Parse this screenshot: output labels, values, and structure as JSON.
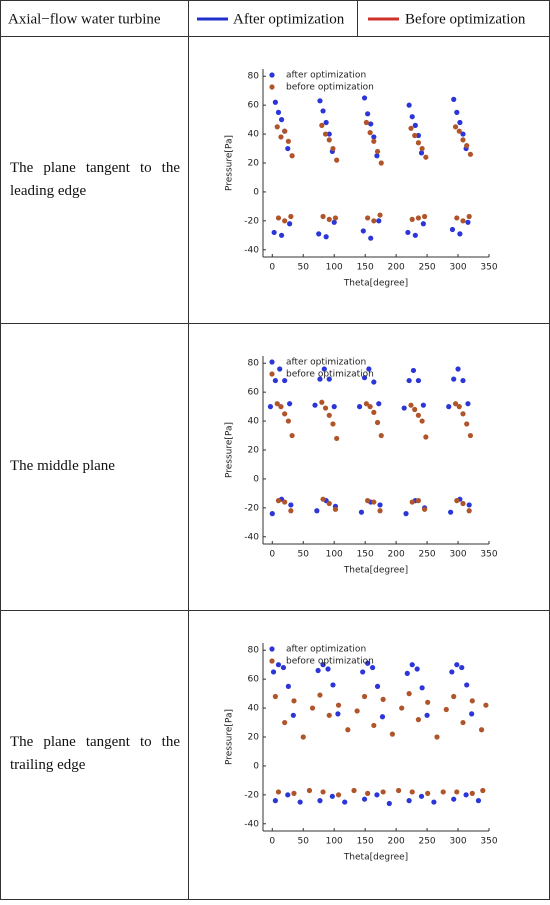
{
  "table": {
    "header": [
      "Axial−flow water turbine",
      "After optimization",
      "Before optimization"
    ],
    "legend_colors": [
      "#1f2fcc",
      "#d0302a"
    ],
    "rows": [
      "The plane tangent to the leading edge",
      "The middle plane",
      "The plane tangent to the trailing edge"
    ]
  },
  "chart_data": [
    {
      "type": "scatter",
      "xlabel": "Theta[degree]",
      "ylabel": "Pressure[Pa]",
      "xlim": [
        -15,
        350
      ],
      "ylim": [
        -45,
        85
      ],
      "xticks": [
        0,
        50,
        100,
        150,
        200,
        250,
        300,
        350
      ],
      "yticks": [
        -40,
        -20,
        0,
        20,
        40,
        60,
        80
      ],
      "series": [
        {
          "name": "after optimization",
          "color": "#2b35d8",
          "x": [
            5,
            10,
            15,
            20,
            25,
            3,
            15,
            28,
            77,
            82,
            87,
            92,
            97,
            75,
            87,
            100,
            149,
            154,
            159,
            164,
            169,
            147,
            159,
            172,
            221,
            226,
            231,
            236,
            241,
            219,
            231,
            244,
            293,
            298,
            303,
            308,
            313,
            291,
            303,
            316
          ],
          "y": [
            62,
            55,
            50,
            42,
            30,
            -28,
            -30,
            -22,
            63,
            56,
            48,
            40,
            28,
            -29,
            -31,
            -21,
            65,
            54,
            47,
            38,
            25,
            -27,
            -32,
            -20,
            60,
            52,
            46,
            39,
            27,
            -28,
            -30,
            -22,
            64,
            55,
            48,
            40,
            30,
            -26,
            -29,
            -21
          ]
        },
        {
          "name": "before optimization",
          "color": "#b0542a",
          "x": [
            8,
            14,
            20,
            26,
            32,
            10,
            20,
            30,
            80,
            86,
            92,
            98,
            104,
            82,
            92,
            102,
            152,
            158,
            164,
            170,
            176,
            154,
            164,
            174,
            224,
            230,
            236,
            242,
            248,
            226,
            236,
            246,
            296,
            302,
            308,
            314,
            320,
            298,
            308,
            318
          ],
          "y": [
            45,
            38,
            42,
            35,
            25,
            -18,
            -20,
            -17,
            46,
            40,
            36,
            30,
            22,
            -17,
            -19,
            -18,
            48,
            41,
            35,
            28,
            20,
            -18,
            -20,
            -16,
            44,
            39,
            34,
            30,
            24,
            -19,
            -18,
            -17,
            45,
            42,
            36,
            32,
            26,
            -18,
            -20,
            -17
          ]
        }
      ]
    },
    {
      "type": "scatter",
      "xlabel": "Theta[degree]",
      "ylabel": "Pressure[Pa]",
      "xlim": [
        -15,
        350
      ],
      "ylim": [
        -45,
        85
      ],
      "xticks": [
        0,
        50,
        100,
        150,
        200,
        250,
        300,
        350
      ],
      "yticks": [
        -40,
        -20,
        0,
        20,
        40,
        60,
        80
      ],
      "series": [
        {
          "name": "after optimization",
          "color": "#2b35d8",
          "x": [
            -3,
            5,
            12,
            20,
            28,
            0,
            15,
            30,
            69,
            77,
            84,
            92,
            100,
            72,
            87,
            102,
            141,
            149,
            156,
            164,
            172,
            144,
            159,
            174,
            213,
            221,
            228,
            236,
            244,
            216,
            231,
            246,
            285,
            293,
            300,
            308,
            316,
            288,
            303,
            318
          ],
          "y": [
            50,
            68,
            76,
            68,
            52,
            -24,
            -14,
            -18,
            51,
            69,
            76,
            69,
            50,
            -22,
            -15,
            -19,
            50,
            70,
            76,
            67,
            52,
            -23,
            -16,
            -18,
            49,
            68,
            75,
            68,
            51,
            -24,
            -15,
            -20,
            50,
            69,
            76,
            68,
            52,
            -23,
            -14,
            -18
          ]
        },
        {
          "name": "before optimization",
          "color": "#b0542a",
          "x": [
            8,
            14,
            20,
            26,
            32,
            10,
            20,
            30,
            80,
            86,
            92,
            98,
            104,
            82,
            92,
            102,
            152,
            158,
            164,
            170,
            176,
            154,
            164,
            174,
            224,
            230,
            236,
            242,
            248,
            226,
            236,
            246,
            296,
            302,
            308,
            314,
            320,
            298,
            308,
            318
          ],
          "y": [
            52,
            50,
            45,
            40,
            30,
            -15,
            -16,
            -22,
            53,
            49,
            44,
            38,
            28,
            -14,
            -17,
            -21,
            52,
            50,
            46,
            39,
            30,
            -15,
            -16,
            -22,
            51,
            48,
            44,
            40,
            29,
            -16,
            -15,
            -21,
            52,
            50,
            45,
            38,
            30,
            -15,
            -17,
            -22
          ]
        }
      ]
    },
    {
      "type": "scatter",
      "xlabel": "Theta[degree]",
      "ylabel": "Pressure[Pa]",
      "xlim": [
        -15,
        350
      ],
      "ylim": [
        -45,
        85
      ],
      "xticks": [
        0,
        50,
        100,
        150,
        200,
        250,
        300,
        350
      ],
      "yticks": [
        -40,
        -20,
        0,
        20,
        40,
        60,
        80
      ],
      "series": [
        {
          "name": "after optimization",
          "color": "#2b35d8",
          "x": [
            2,
            10,
            18,
            26,
            34,
            5,
            25,
            45,
            74,
            82,
            90,
            98,
            106,
            77,
            97,
            117,
            146,
            154,
            162,
            170,
            178,
            149,
            169,
            189,
            218,
            226,
            234,
            242,
            250,
            221,
            241,
            261,
            290,
            298,
            306,
            314,
            322,
            293,
            313,
            333
          ],
          "y": [
            65,
            70,
            68,
            55,
            35,
            -24,
            -20,
            -25,
            66,
            70,
            67,
            56,
            36,
            -24,
            -21,
            -25,
            65,
            71,
            68,
            55,
            34,
            -23,
            -20,
            -26,
            64,
            70,
            67,
            54,
            35,
            -24,
            -21,
            -25,
            65,
            70,
            68,
            56,
            36,
            -23,
            -20,
            -24
          ]
        },
        {
          "name": "before optimization",
          "color": "#b0542a",
          "x": [
            5,
            20,
            35,
            50,
            65,
            10,
            35,
            60,
            77,
            92,
            107,
            122,
            137,
            82,
            107,
            132,
            149,
            164,
            179,
            194,
            209,
            154,
            179,
            204,
            221,
            236,
            251,
            266,
            281,
            226,
            251,
            276,
            293,
            308,
            323,
            338,
            345,
            298,
            323,
            340
          ],
          "y": [
            48,
            30,
            45,
            20,
            40,
            -18,
            -19,
            -17,
            49,
            35,
            42,
            25,
            38,
            -18,
            -20,
            -17,
            48,
            28,
            46,
            22,
            40,
            -19,
            -18,
            -17,
            50,
            32,
            44,
            20,
            39,
            -18,
            -19,
            -18,
            48,
            30,
            45,
            25,
            42,
            -18,
            -19,
            -17
          ]
        }
      ]
    }
  ]
}
